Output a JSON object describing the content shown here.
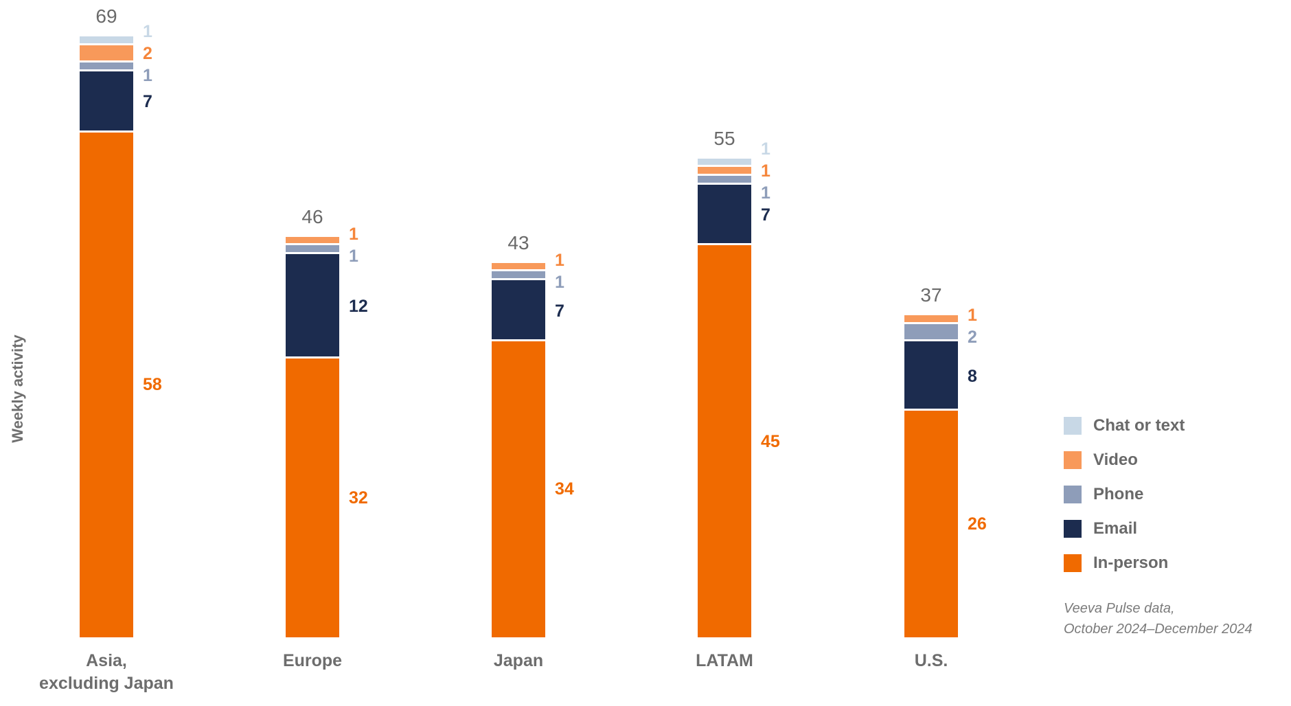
{
  "chart_data": {
    "type": "bar",
    "stacked": true,
    "orientation": "vertical",
    "title": "",
    "xlabel": "",
    "ylabel": "Weekly activity",
    "categories": [
      "Asia,\nexcluding Japan",
      "Europe",
      "Japan",
      "LATAM",
      "U.S."
    ],
    "totals": [
      69,
      46,
      43,
      55,
      37
    ],
    "series": [
      {
        "name": "Chat or text",
        "color": "#C8D8E6",
        "label_color": "#C8D8E6",
        "values": [
          1,
          0,
          0,
          1,
          0
        ]
      },
      {
        "name": "Video",
        "color": "#F8995A",
        "label_color": "#F5863B",
        "values": [
          2,
          1,
          1,
          1,
          1
        ]
      },
      {
        "name": "Phone",
        "color": "#8E9DB9",
        "label_color": "#8E9DB9",
        "values": [
          1,
          1,
          1,
          1,
          2
        ]
      },
      {
        "name": "Email",
        "color": "#1C2C4F",
        "label_color": "#1C2C4F",
        "values": [
          7,
          12,
          7,
          7,
          8
        ]
      },
      {
        "name": "In-person",
        "color": "#F06A00",
        "label_color": "#F06A00",
        "values": [
          58,
          32,
          34,
          45,
          26
        ]
      }
    ],
    "axis": {
      "y_min": 0,
      "y_max": 69,
      "gridlines": false
    },
    "legend": {
      "position": "right",
      "items": [
        "Chat or text",
        "Video",
        "Phone",
        "Email",
        "In-person"
      ]
    },
    "source_note": [
      "Veeva Pulse data,",
      "October 2024–December 2024"
    ]
  }
}
